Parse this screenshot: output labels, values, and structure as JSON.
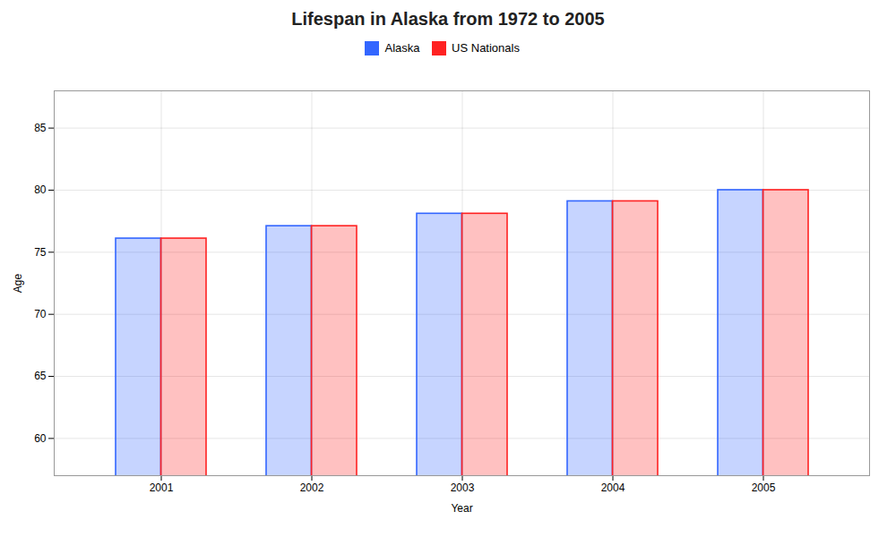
{
  "chart_data": {
    "type": "bar",
    "title": "Lifespan in Alaska from 1972 to 2005",
    "xlabel": "Year",
    "ylabel": "Age",
    "categories": [
      "2001",
      "2002",
      "2003",
      "2004",
      "2005"
    ],
    "series": [
      {
        "name": "Alaska",
        "color": "#3366ff",
        "values": [
          76.1,
          77.1,
          78.1,
          79.1,
          80.0
        ]
      },
      {
        "name": "US Nationals",
        "color": "#ff2222",
        "values": [
          76.1,
          77.1,
          78.1,
          79.1,
          80.0
        ]
      }
    ],
    "ylim": [
      57,
      88
    ],
    "yticks": [
      60,
      65,
      70,
      75,
      80,
      85
    ],
    "grid": true,
    "legend": "upper center"
  }
}
